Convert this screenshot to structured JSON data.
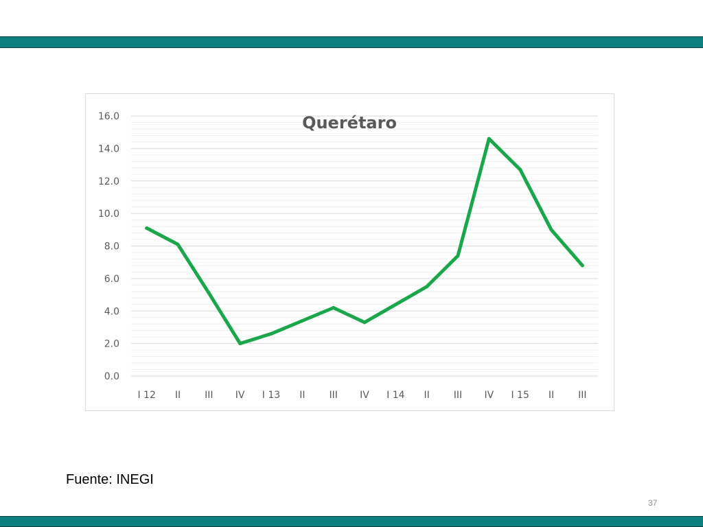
{
  "colors": {
    "band": "#0e8080",
    "line": "#1aa64a",
    "grid_major": "#d9d9d9",
    "grid_minor": "#eeeeee",
    "axis_text": "#595959",
    "title_text": "#595959"
  },
  "chart_data": {
    "type": "line",
    "title": "Querétaro",
    "xlabel": "",
    "ylabel": "",
    "ylim": [
      0,
      16
    ],
    "y_ticks": [
      "0.0",
      "2.0",
      "4.0",
      "6.0",
      "8.0",
      "10.0",
      "12.0",
      "14.0",
      "16.0"
    ],
    "grid": true,
    "legend": "none",
    "categories": [
      "I 12",
      "II",
      "III",
      "IV",
      "I 13",
      "II",
      "III",
      "IV",
      "I 14",
      "II",
      "III",
      "IV",
      "I 15",
      "II",
      "III"
    ],
    "series": [
      {
        "values": [
          9.1,
          8.1,
          5.1,
          2.0,
          2.6,
          3.4,
          4.2,
          3.3,
          4.4,
          5.5,
          7.4,
          14.6,
          12.7,
          9.0,
          6.8
        ]
      }
    ]
  },
  "footer": {
    "source": "Fuente: INEGI",
    "page_number": "37"
  }
}
